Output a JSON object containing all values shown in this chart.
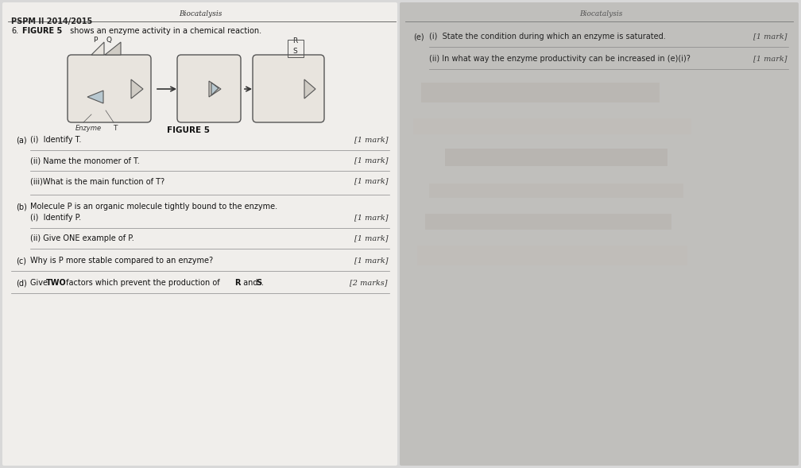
{
  "bg_color": "#d8d8d8",
  "left_bg": "#f0eeeb",
  "right_bg": "#c8c8c8",
  "page_title_left": "Biocatalysis",
  "header_left": "PSPM II 2014/2015",
  "question_num": "6.",
  "q6_text_bold": "FIGURE 5",
  "q6_text": " shows an enzyme activity in a chemical reaction.",
  "figure_caption": "FIGURE 5",
  "right_header": "Biocatalysis",
  "qa_label": "(a)",
  "qa_i": "(i)  Identify T.",
  "qa_i_mark": "[1 mark]",
  "qa_ii": "(ii) Name the monomer of T.",
  "qa_ii_mark": "[1 mark]",
  "qa_iii": "(iii)What is the main function of T?",
  "qa_iii_mark": "[1 mark]",
  "qb_label": "(b)",
  "qb_intro": "Molecule P is an organic molecule tightly bound to the enzyme.",
  "qb_i": "(i)  Identify P.",
  "qb_i_mark": "[1 mark]",
  "qb_ii": "(ii) Give ONE example of P.",
  "qb_ii_mark": "[1 mark]",
  "qc_label": "(c)",
  "qc_text": "Why is P more stable compared to an enzyme?",
  "qc_mark": "[1 mark]",
  "qd_label": "(d)",
  "qd_text_pre": "Give ",
  "qd_text_bold": "TWO",
  "qd_text_post": " factors which prevent the production of ",
  "qd_text_bold2": "R",
  "qd_text_and": " and ",
  "qd_text_bold3": "S",
  "qd_text_end": ".",
  "qd_mark": "[2 marks]",
  "qe_label": "(e)",
  "qe_i": "(i)  State the condition during which an enzyme is saturated.",
  "qe_i_mark": "[1 mark]",
  "qe_ii": "(ii) In what way the enzyme productivity can be increased in (e)(i)?",
  "qe_ii_mark": "[1 mark]"
}
